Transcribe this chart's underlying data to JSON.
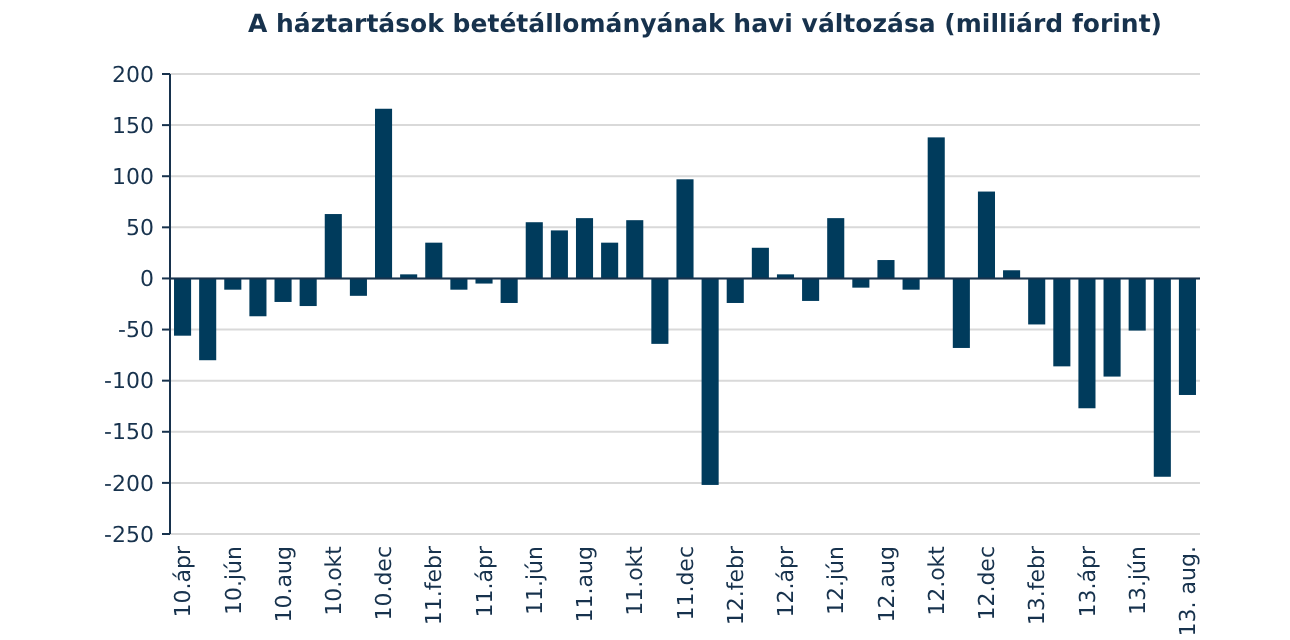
{
  "chart_data": {
    "type": "bar",
    "title": "A háztartások betétállományának havi változása (milliárd forint)",
    "categories": [
      "10.ápr",
      null,
      "10.jún",
      null,
      "10.aug",
      null,
      "10.okt",
      null,
      "10.dec",
      null,
      "11.febr",
      null,
      "11.ápr",
      null,
      "11.jún",
      null,
      "11.aug",
      null,
      "11.okt",
      null,
      "11.dec",
      null,
      "12.febr",
      null,
      "12.ápr",
      null,
      "12.jún",
      null,
      "12.aug",
      null,
      "12.okt",
      null,
      "12.dec",
      null,
      "13.febr",
      null,
      "13.ápr",
      null,
      "13.jún",
      null,
      "13. aug."
    ],
    "values": [
      -56,
      -80,
      -11,
      -37,
      -23,
      -27,
      63,
      -17,
      166,
      4,
      35,
      -11,
      -5,
      -24,
      55,
      47,
      59,
      35,
      57,
      -64,
      97,
      -202,
      -24,
      30,
      4,
      -22,
      59,
      -9,
      18,
      -11,
      138,
      -68,
      85,
      8,
      -45,
      -86,
      -127,
      -96,
      -51,
      -194,
      -114
    ],
    "color": "#003b5c",
    "ylim": [
      -250,
      200
    ],
    "yticks": [
      -250,
      -200,
      -150,
      -100,
      -50,
      0,
      50,
      100,
      150,
      200
    ],
    "grid": "y"
  }
}
